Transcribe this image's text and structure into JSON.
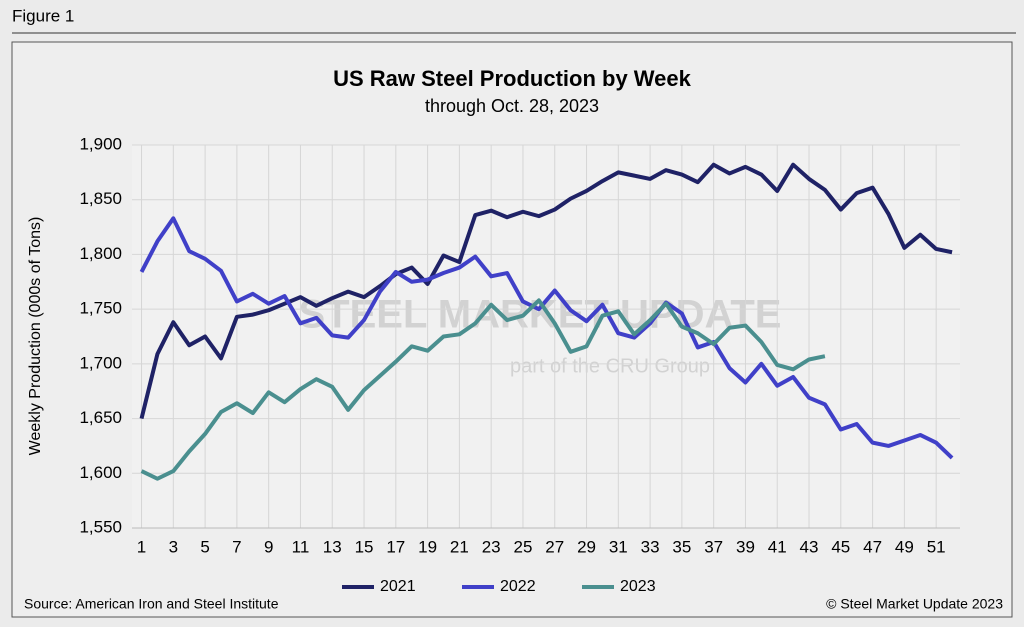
{
  "figure_label": "Figure 1",
  "chart_data": {
    "type": "line",
    "title": "US Raw Steel Production by Week",
    "subtitle": "through Oct. 28, 2023",
    "y_label": "Weekly Production (000s of Tons)",
    "watermark": [
      "STEEL MARKET UPDATE",
      "part of the CRU Group"
    ],
    "source": "Source: American Iron and Steel Institute",
    "credit": "© Steel Market Update 2023",
    "x": [
      1,
      2,
      3,
      4,
      5,
      6,
      7,
      8,
      9,
      10,
      11,
      12,
      13,
      14,
      15,
      16,
      17,
      18,
      19,
      20,
      21,
      22,
      23,
      24,
      25,
      26,
      27,
      28,
      29,
      30,
      31,
      32,
      33,
      34,
      35,
      36,
      37,
      38,
      39,
      40,
      41,
      42,
      43,
      44,
      45,
      46,
      47,
      48,
      49,
      50,
      51,
      52
    ],
    "xlim": [
      0.4,
      52.5
    ],
    "xticks": [
      1,
      3,
      5,
      7,
      9,
      11,
      13,
      15,
      17,
      19,
      21,
      23,
      25,
      27,
      29,
      31,
      33,
      35,
      37,
      39,
      41,
      43,
      45,
      47,
      49,
      51
    ],
    "ylim": [
      1550,
      1900
    ],
    "yticks": [
      {
        "value": 1550,
        "label": "1,550"
      },
      {
        "value": 1600,
        "label": "1,600"
      },
      {
        "value": 1650,
        "label": "1,650"
      },
      {
        "value": 1700,
        "label": "1,700"
      },
      {
        "value": 1750,
        "label": "1,750"
      },
      {
        "value": 1800,
        "label": "1,800"
      },
      {
        "value": 1850,
        "label": "1,850"
      },
      {
        "value": 1900,
        "label": "1,900"
      }
    ],
    "grid": true,
    "legend": "bottom",
    "series": [
      {
        "name": "2021",
        "color": "#1f2266",
        "values": [
          1650,
          1709,
          1738,
          1717,
          1725,
          1705,
          1743,
          1745,
          1749,
          1755,
          1761,
          1753,
          1760,
          1766,
          1761,
          1771,
          1782,
          1788,
          1773,
          1799,
          1793,
          1836,
          1840,
          1834,
          1839,
          1835,
          1841,
          1851,
          1858,
          1867,
          1875,
          1872,
          1869,
          1877,
          1873,
          1866,
          1882,
          1874,
          1880,
          1873,
          1858,
          1882,
          1869,
          1859,
          1841,
          1856,
          1861,
          1837,
          1806,
          1818,
          1805,
          1802
        ]
      },
      {
        "name": "2022",
        "color": "#4040c8",
        "values": [
          1784,
          1812,
          1833,
          1803,
          1796,
          1785,
          1757,
          1764,
          1755,
          1762,
          1737,
          1742,
          1726,
          1724,
          1740,
          1766,
          1784,
          1775,
          1777,
          1783,
          1788,
          1798,
          1780,
          1783,
          1757,
          1750,
          1767,
          1749,
          1739,
          1754,
          1728,
          1724,
          1737,
          1756,
          1746,
          1715,
          1720,
          1696,
          1683,
          1700,
          1680,
          1688,
          1669,
          1663,
          1640,
          1645,
          1628,
          1625,
          1630,
          1635,
          1628,
          1614
        ]
      },
      {
        "name": "2023",
        "color": "#4a8f8f",
        "values": [
          1602,
          1595,
          1602,
          1620,
          1636,
          1656,
          1664,
          1655,
          1674,
          1665,
          1677,
          1686,
          1679,
          1658,
          1676,
          1689,
          1702,
          1716,
          1712,
          1725,
          1727,
          1737,
          1754,
          1740,
          1744,
          1758,
          1737,
          1711,
          1716,
          1744,
          1748,
          1727,
          1740,
          1755,
          1734,
          1728,
          1718,
          1733,
          1735,
          1720,
          1699,
          1695,
          1704,
          1707,
          null,
          null,
          null,
          null,
          null,
          null,
          null,
          null
        ]
      }
    ]
  }
}
